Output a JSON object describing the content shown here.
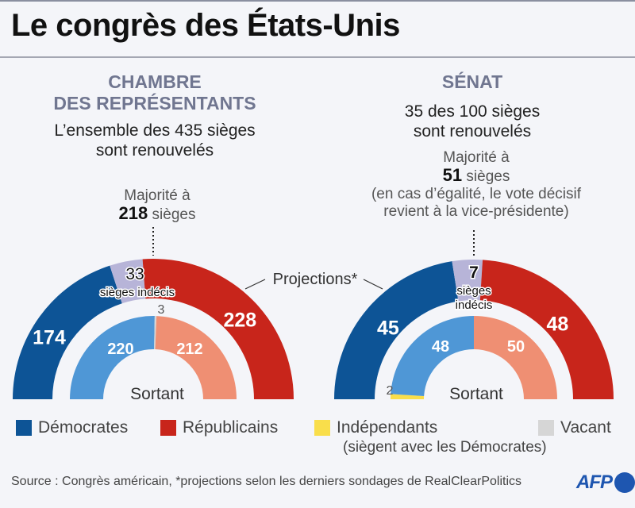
{
  "title": "Le congrès des États-Unis",
  "house": {
    "heading_line1": "CHAMBRE",
    "heading_line2": "DES REPRÉSENTANTS",
    "sub_line1": "L’ensemble des 435 sièges",
    "sub_line2": "sont renouvelés",
    "majority_line1": "Majorité à",
    "majority_number": "218",
    "majority_unit": "sièges"
  },
  "senate": {
    "heading": "SÉNAT",
    "sub_line1": "35 des 100 sièges",
    "sub_line2": "sont renouvelés",
    "majority_line1": "Majorité à",
    "majority_number": "51",
    "majority_unit": "sièges",
    "note_line1": "(en cas d’égalité, le vote décisif",
    "note_line2": "revient à la vice-présidente)"
  },
  "projections_label": "Projections*",
  "sortant_label": "Sortant",
  "colors": {
    "dem": "#0d5496",
    "rep": "#c8251b",
    "undecided": "#b7b4d8",
    "dem_light": "#4f97d6",
    "rep_light": "#ef8f73",
    "independent": "#f9de4b",
    "vacant": "#d6d6d6"
  },
  "chart_data": [
    {
      "type": "pie",
      "title": "Chambre des représentants — Projections",
      "total": 435,
      "categories": [
        "Démocrates",
        "Sièges indécis",
        "Républicains"
      ],
      "values": [
        174,
        33,
        228
      ],
      "labels": [
        "174",
        "33",
        "228"
      ],
      "undecided_text": "sièges indécis"
    },
    {
      "type": "pie",
      "title": "Chambre des représentants — Sortant",
      "total": 435,
      "categories": [
        "Démocrates",
        "Vacant",
        "Républicains"
      ],
      "values": [
        220,
        3,
        212
      ],
      "labels": [
        "220",
        "3",
        "212"
      ]
    },
    {
      "type": "pie",
      "title": "Sénat — Projections",
      "total": 100,
      "categories": [
        "Démocrates",
        "Sièges indécis",
        "Républicains"
      ],
      "values": [
        45,
        7,
        48
      ],
      "labels": [
        "45",
        "7",
        "48"
      ],
      "undecided_text_line1": "sièges",
      "undecided_text_line2": "indécis"
    },
    {
      "type": "pie",
      "title": "Sénat — Sortant",
      "total": 100,
      "categories": [
        "Indépendants",
        "Démocrates",
        "Républicains"
      ],
      "values": [
        2,
        48,
        50
      ],
      "labels": [
        "2",
        "48",
        "50"
      ]
    }
  ],
  "legend": [
    {
      "label": "Démocrates",
      "color": "#0d5496"
    },
    {
      "label": "Républicains",
      "color": "#c8251b"
    },
    {
      "label": "Indépendants",
      "color": "#f9de4b",
      "sublabel": "(siègent avec les Démocrates)"
    },
    {
      "label": "Vacant",
      "color": "#d6d6d6"
    }
  ],
  "source": "Source : Congrès américain, *projections selon les derniers sondages de RealClearPolitics",
  "logo": "AFP"
}
